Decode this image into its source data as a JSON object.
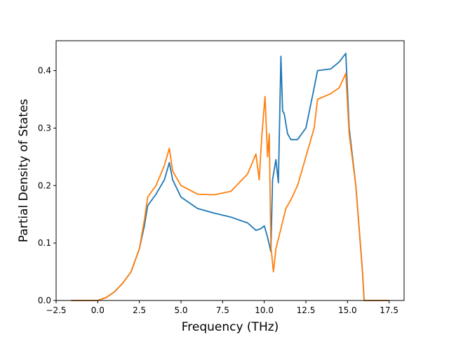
{
  "chart_data": {
    "type": "line",
    "title": "",
    "xlabel": "Frequency (THz)",
    "ylabel": "Partial Density of States",
    "xlim": [
      -2.5,
      18.4
    ],
    "ylim": [
      0.0,
      0.452
    ],
    "xticks": [
      -2.5,
      0.0,
      2.5,
      5.0,
      7.5,
      10.0,
      12.5,
      15.0,
      17.5
    ],
    "xtick_labels": [
      "−2.5",
      "0.0",
      "2.5",
      "5.0",
      "7.5",
      "10.0",
      "12.5",
      "15.0",
      "17.5"
    ],
    "yticks": [
      0.0,
      0.1,
      0.2,
      0.3,
      0.4
    ],
    "ytick_labels": [
      "0.0",
      "0.1",
      "0.2",
      "0.3",
      "0.4"
    ],
    "grid": false,
    "legend": "none",
    "series": [
      {
        "color": "#1f77b4",
        "x": [
          -1.6,
          0.0,
          0.5,
          1.0,
          1.5,
          2.0,
          2.5,
          2.8,
          3.0,
          3.5,
          4.0,
          4.3,
          4.5,
          5.0,
          6.0,
          7.0,
          8.0,
          9.0,
          9.5,
          9.8,
          10.0,
          10.2,
          10.4,
          10.5,
          10.7,
          10.85,
          11.0,
          11.1,
          11.2,
          11.4,
          11.6,
          12.0,
          12.5,
          13.0,
          13.2,
          14.0,
          14.5,
          14.9,
          15.1,
          15.5,
          15.9,
          16.0,
          17.5
        ],
        "y": [
          0.0,
          0.0,
          0.005,
          0.015,
          0.03,
          0.05,
          0.09,
          0.13,
          0.165,
          0.185,
          0.21,
          0.24,
          0.21,
          0.18,
          0.16,
          0.152,
          0.145,
          0.135,
          0.122,
          0.125,
          0.13,
          0.11,
          0.085,
          0.21,
          0.245,
          0.205,
          0.425,
          0.33,
          0.325,
          0.29,
          0.28,
          0.28,
          0.3,
          0.37,
          0.4,
          0.403,
          0.415,
          0.43,
          0.3,
          0.2,
          0.05,
          0.0,
          0.0
        ]
      },
      {
        "color": "#ff7f0e",
        "x": [
          -1.6,
          0.0,
          0.5,
          1.0,
          1.5,
          2.0,
          2.5,
          2.8,
          3.0,
          3.5,
          4.0,
          4.3,
          4.5,
          5.0,
          6.0,
          7.0,
          8.0,
          9.0,
          9.5,
          9.7,
          9.85,
          10.05,
          10.2,
          10.3,
          10.4,
          10.55,
          10.7,
          11.0,
          11.3,
          11.6,
          12.0,
          12.5,
          13.0,
          13.2,
          14.0,
          14.5,
          14.9,
          15.1,
          15.5,
          15.9,
          16.0,
          17.5
        ],
        "y": [
          0.0,
          0.0,
          0.005,
          0.015,
          0.03,
          0.05,
          0.09,
          0.14,
          0.18,
          0.2,
          0.235,
          0.265,
          0.225,
          0.2,
          0.185,
          0.184,
          0.19,
          0.22,
          0.255,
          0.21,
          0.285,
          0.355,
          0.25,
          0.29,
          0.095,
          0.05,
          0.09,
          0.125,
          0.16,
          0.175,
          0.2,
          0.25,
          0.3,
          0.35,
          0.36,
          0.37,
          0.395,
          0.29,
          0.2,
          0.05,
          0.0,
          0.0
        ]
      }
    ]
  }
}
